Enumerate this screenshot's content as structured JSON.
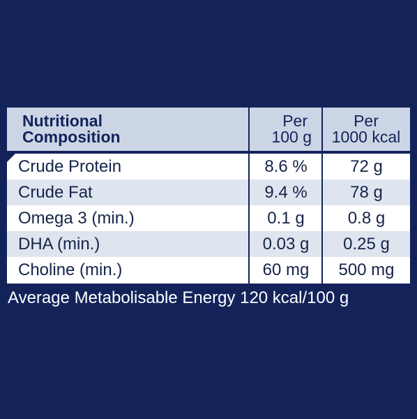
{
  "table": {
    "title_line1": "Nutritional",
    "title_line2": "Composition",
    "col1_line1": "Per",
    "col1_line2": "100 g",
    "col2_line1": "Per",
    "col2_line2": "1000 kcal",
    "rows": [
      {
        "name": "Crude Protein",
        "per100g": "8.6 %",
        "per1000kcal": "72 g"
      },
      {
        "name": "Crude Fat",
        "per100g": "9.4 %",
        "per1000kcal": "78 g"
      },
      {
        "name": "Omega 3 (min.)",
        "per100g": "0.1 g",
        "per1000kcal": "0.8 g"
      },
      {
        "name": "DHA (min.)",
        "per100g": "0.03 g",
        "per1000kcal": "0.25 g"
      },
      {
        "name": "Choline (min.)",
        "per100g": "60 mg",
        "per1000kcal": "500 mg"
      }
    ]
  },
  "footer": {
    "text": "Average Metabolisable Energy 120 kcal/100 g"
  },
  "colors": {
    "background": "#13235a",
    "header": "#ccd5e5",
    "row_shade": "#dfe5ef",
    "text": "#152449"
  }
}
